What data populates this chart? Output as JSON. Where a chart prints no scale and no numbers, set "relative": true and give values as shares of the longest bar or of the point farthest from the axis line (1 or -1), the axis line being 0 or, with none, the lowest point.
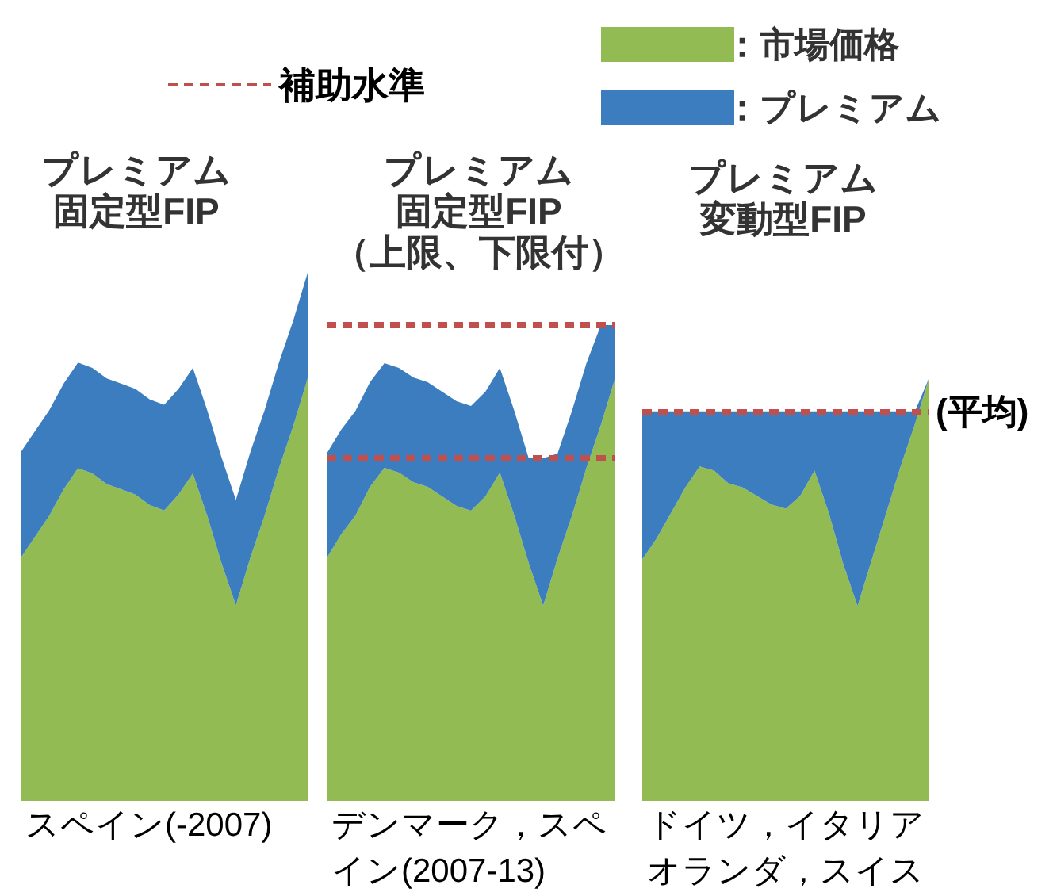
{
  "chart_data": [
    {
      "type": "area",
      "title": "プレミアム固定型FIP",
      "xlabel": "スペイン(-2007)",
      "relative": true,
      "stacked": true,
      "legend": "top right",
      "categories": [
        null,
        null,
        null,
        null,
        null,
        null,
        null,
        null,
        null,
        null,
        null,
        null,
        null,
        null,
        null,
        null,
        null,
        null,
        null,
        null,
        null
      ],
      "series": [
        {
          "name": "：市場価格",
          "color": "#92bb53",
          "values": [
            0.46,
            0.5,
            0.54,
            0.59,
            0.63,
            0.62,
            0.6,
            0.59,
            0.58,
            0.56,
            0.55,
            0.58,
            0.62,
            0.54,
            0.45,
            0.37,
            0.46,
            0.54,
            0.63,
            0.71,
            0.8
          ]
        },
        {
          "name": "：プレミアム",
          "color": "#3b7dbf",
          "values": [
            0.2,
            0.2,
            0.2,
            0.2,
            0.2,
            0.2,
            0.2,
            0.2,
            0.2,
            0.2,
            0.2,
            0.2,
            0.2,
            0.2,
            0.2,
            0.2,
            0.2,
            0.2,
            0.2,
            0.2,
            0.2
          ]
        }
      ]
    },
    {
      "type": "area",
      "title": "プレミアム固定型FIP（上限、下限付）",
      "xlabel": "デンマーク，スペイン(2007-13)",
      "relative": true,
      "stacked": true,
      "legend": "top left",
      "categories": [
        null,
        null,
        null,
        null,
        null,
        null,
        null,
        null,
        null,
        null,
        null,
        null,
        null,
        null,
        null,
        null,
        null,
        null,
        null,
        null,
        null
      ],
      "series": [
        {
          "color": "#92bb53",
          "values": [
            0.51,
            0.56,
            0.6,
            0.66,
            0.7,
            0.69,
            0.67,
            0.66,
            0.64,
            0.62,
            0.61,
            0.64,
            0.69,
            0.6,
            0.5,
            0.41,
            0.51,
            0.6,
            0.7,
            0.79,
            0.89
          ]
        },
        {
          "color": "#3b7dbf",
          "values": [
            0.22,
            0.22,
            0.22,
            0.22,
            0.22,
            0.22,
            0.22,
            0.22,
            0.22,
            0.22,
            0.22,
            0.22,
            0.22,
            0.22,
            0.22,
            0.31,
            0.22,
            0.22,
            0.22,
            0.21,
            0.11
          ]
        }
      ],
      "ref_lines": [
        {
          "axis": "y",
          "value": 1.0,
          "label": "補助水準",
          "color": "#c0504d",
          "line_style": "dotted"
        },
        {
          "axis": "y",
          "value": 0.72,
          "color": "#c0504d",
          "line_style": "dotted"
        }
      ]
    },
    {
      "type": "area",
      "title": "プレミアム変動型FIP",
      "xlabel": "ドイツ，イタリアオランダ，スイス",
      "relative": true,
      "stacked": true,
      "categories": [
        null,
        null,
        null,
        null,
        null,
        null,
        null,
        null,
        null,
        null,
        null,
        null,
        null,
        null,
        null,
        null,
        null,
        null,
        null,
        null,
        null
      ],
      "series": [
        {
          "color": "#92bb53",
          "values": [
            0.57,
            0.62,
            0.68,
            0.74,
            0.79,
            0.78,
            0.75,
            0.74,
            0.72,
            0.7,
            0.69,
            0.72,
            0.78,
            0.68,
            0.56,
            0.46,
            0.57,
            0.68,
            0.79,
            0.89,
            1.0
          ]
        },
        {
          "color": "#3b7dbf",
          "values": [
            0.35,
            0.3,
            0.24,
            0.18,
            0.13,
            0.14,
            0.17,
            0.18,
            0.2,
            0.22,
            0.23,
            0.2,
            0.14,
            0.24,
            0.36,
            0.46,
            0.35,
            0.24,
            0.13,
            0.03,
            0
          ]
        }
      ],
      "ref_lines": [
        {
          "axis": "y",
          "value": 0.92,
          "label": "(平均)",
          "color": "#c0504d",
          "line_style": "dotted"
        }
      ]
    }
  ]
}
